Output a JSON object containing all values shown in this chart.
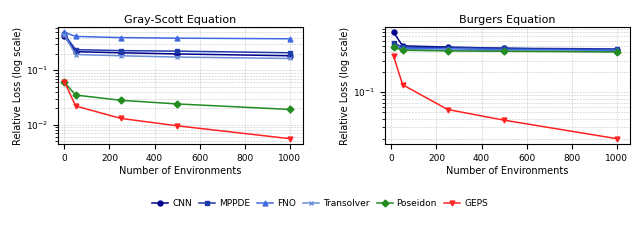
{
  "title1": "Gray-Scott Equation",
  "title2": "Burgers Equation",
  "xlabel": "Number of Environments",
  "ylabel": "Relative Loss (log scale)",
  "legend_labels": [
    "CNN",
    "MPPDE",
    "FNO",
    "Transolver",
    "Poseidon",
    "GEPS"
  ],
  "gs_x": [
    0,
    50,
    250,
    500,
    1000
  ],
  "burgers_x": [
    10,
    50,
    250,
    500,
    1000
  ],
  "gs": {
    "CNN": [
      0.42,
      0.22,
      0.21,
      0.2,
      0.185
    ],
    "MPPDE": [
      0.46,
      0.24,
      0.23,
      0.225,
      0.21
    ],
    "FNO": [
      0.5,
      0.42,
      0.4,
      0.39,
      0.38
    ],
    "Transolver": [
      0.44,
      0.195,
      0.185,
      0.175,
      0.165
    ],
    "Poseidon": [
      0.06,
      0.035,
      0.028,
      0.024,
      0.019
    ],
    "GEPS": [
      0.062,
      0.022,
      0.013,
      0.0095,
      0.0055
    ]
  },
  "burgers": {
    "CNN": [
      0.8,
      0.5,
      0.48,
      0.46,
      0.43
    ],
    "MPPDE": [
      0.55,
      0.48,
      0.47,
      0.46,
      0.45
    ],
    "FNO": [
      0.5,
      0.46,
      0.45,
      0.44,
      0.43
    ],
    "Transolver": [
      0.48,
      0.44,
      0.43,
      0.42,
      0.41
    ],
    "Poseidon": [
      0.48,
      0.43,
      0.42,
      0.415,
      0.405
    ],
    "GEPS": [
      0.35,
      0.13,
      0.055,
      0.038,
      0.02
    ]
  },
  "colors": {
    "CNN": "#00008B",
    "MPPDE": "#1e3aaa",
    "FNO": "#4169E1",
    "Transolver": "#6a8fd8",
    "Poseidon": "#228B22",
    "GEPS": "#FF2222"
  },
  "markers": {
    "CNN": "o",
    "MPPDE": "s",
    "FNO": "^",
    "Transolver": "x",
    "Poseidon": "D",
    "GEPS": "v"
  }
}
